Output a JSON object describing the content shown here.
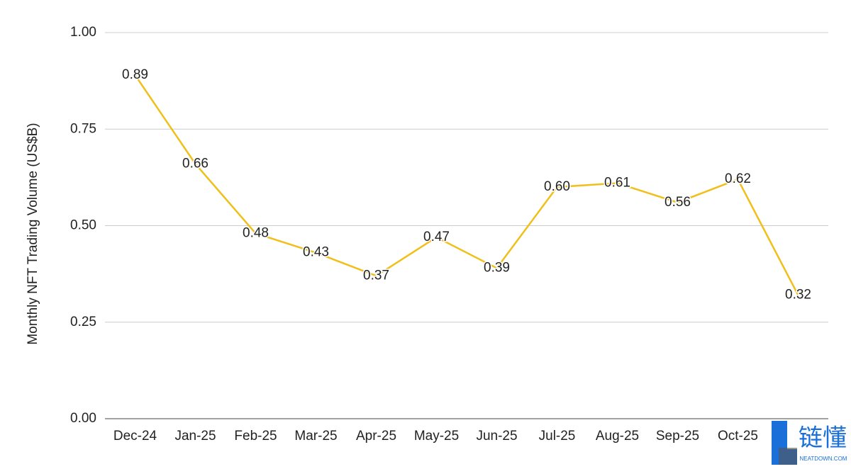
{
  "chart_data": {
    "type": "line",
    "y_label": "Monthly NFT Trading Volume (US$B)",
    "categories": [
      "Dec-24",
      "Jan-25",
      "Feb-25",
      "Mar-25",
      "Apr-25",
      "May-25",
      "Jun-25",
      "Jul-25",
      "Aug-25",
      "Sep-25",
      "Oct-25",
      null
    ],
    "series": [
      {
        "name": "Monthly NFT Trading Volume",
        "color": "#f0bf1a",
        "values": [
          0.89,
          0.66,
          0.48,
          0.43,
          0.37,
          0.47,
          0.39,
          0.6,
          0.61,
          0.56,
          0.62,
          0.32
        ],
        "value_labels": [
          "0.89",
          "0.66",
          "0.48",
          "0.43",
          "0.37",
          "0.47",
          "0.39",
          "0.60",
          "0.61",
          "0.56",
          "0.62",
          "0.32"
        ]
      }
    ],
    "ylim": [
      0,
      1
    ],
    "yticks": [
      {
        "value": 0,
        "label": "0.00"
      },
      {
        "value": 0.25,
        "label": "0.25"
      },
      {
        "value": 0.5,
        "label": "0.50"
      },
      {
        "value": 0.75,
        "label": "0.75"
      },
      {
        "value": 1,
        "label": "1.00"
      }
    ],
    "grid": true
  },
  "watermark": {
    "brand": "链懂",
    "site": "NEATDOWN.COM"
  }
}
